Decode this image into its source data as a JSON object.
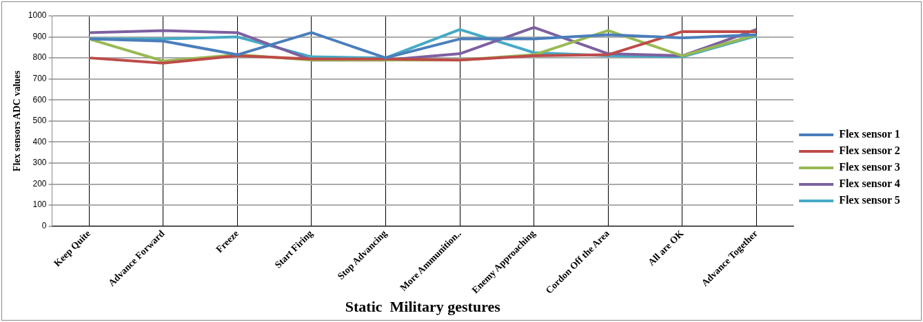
{
  "chart_data": {
    "type": "line",
    "xlabel": "Static  Military gestures",
    "ylabel": "Flex sensors ADC values",
    "categories": [
      "Keep Quite",
      "Advance Forward",
      "Freeze",
      "Start Firing",
      "Stop Advancing",
      "More Ammunition..",
      "Enemy Approaching",
      "Cordon Off the Area",
      "All are OK",
      "Advance Together"
    ],
    "series": [
      {
        "name": "Flex sensor 1",
        "color": "#4a7ebb",
        "values": [
          890,
          880,
          815,
          920,
          800,
          890,
          890,
          910,
          895,
          910
        ]
      },
      {
        "name": "Flex sensor 2",
        "color": "#be4b48",
        "values": [
          800,
          775,
          810,
          795,
          795,
          790,
          810,
          815,
          925,
          925
        ]
      },
      {
        "name": "Flex sensor 3",
        "color": "#98b954",
        "values": [
          890,
          785,
          815,
          790,
          790,
          790,
          815,
          930,
          810,
          910
        ]
      },
      {
        "name": "Flex sensor 4",
        "color": "#7d60a0",
        "values": [
          920,
          930,
          920,
          790,
          790,
          820,
          945,
          820,
          810,
          935
        ]
      },
      {
        "name": "Flex sensor 5",
        "color": "#46aac5",
        "values": [
          890,
          890,
          900,
          805,
          800,
          935,
          825,
          810,
          805,
          905
        ]
      }
    ],
    "ylim": [
      0,
      1000
    ],
    "yticks": [
      0,
      100,
      200,
      300,
      400,
      500,
      600,
      700,
      800,
      900,
      1000
    ],
    "grid": true,
    "legend": "right",
    "marker": "none",
    "line_style": "solid"
  }
}
